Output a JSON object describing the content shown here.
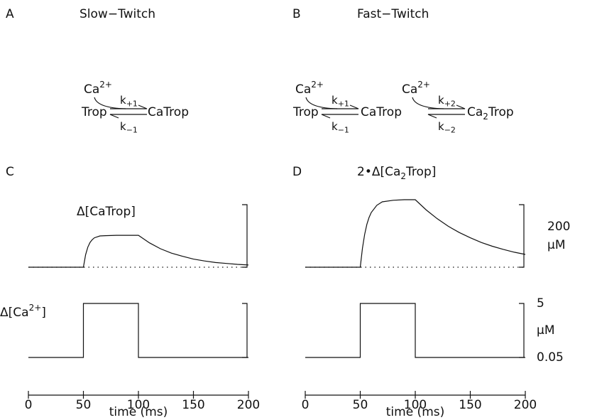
{
  "panels": [
    {
      "label": "A",
      "title": "Slow−Twitch"
    },
    {
      "label": "B",
      "title": "Fast−Twitch"
    },
    {
      "label": "C"
    },
    {
      "label": "D"
    }
  ],
  "schemes": [
    {
      "species": [
        [
          {
            "t": "Trop"
          }
        ],
        [
          {
            "t": "CaTrop"
          }
        ]
      ],
      "steps": [
        {
          "ligand": [
            {
              "t": "Ca"
            },
            {
              "t": "2+",
              "s": "sup"
            }
          ],
          "forward": [
            {
              "t": "k"
            },
            {
              "t": "+1",
              "s": "sub"
            }
          ],
          "reverse": [
            {
              "t": "k"
            },
            {
              "t": "−1",
              "s": "sub"
            }
          ]
        }
      ]
    },
    {
      "species": [
        [
          {
            "t": "Trop"
          }
        ],
        [
          {
            "t": "CaTrop"
          }
        ],
        [
          {
            "t": "Ca"
          },
          {
            "t": "2",
            "s": "sub"
          },
          {
            "t": "Trop"
          }
        ]
      ],
      "steps": [
        {
          "ligand": [
            {
              "t": "Ca"
            },
            {
              "t": "2+",
              "s": "sup"
            }
          ],
          "forward": [
            {
              "t": "k"
            },
            {
              "t": "+1",
              "s": "sub"
            }
          ],
          "reverse": [
            {
              "t": "k"
            },
            {
              "t": "−1",
              "s": "sub"
            }
          ]
        },
        {
          "ligand": [
            {
              "t": "Ca"
            },
            {
              "t": "2+",
              "s": "sup"
            }
          ],
          "forward": [
            {
              "t": "k"
            },
            {
              "t": "+2",
              "s": "sub"
            }
          ],
          "reverse": [
            {
              "t": "k"
            },
            {
              "t": "−2",
              "s": "sub"
            }
          ]
        }
      ]
    }
  ],
  "chart_data": [
    {
      "type": "line",
      "color": "#000000",
      "label": [
        {
          "t": "Δ[CaTrop]"
        }
      ],
      "x": [
        0,
        50,
        52,
        54,
        56,
        58,
        60,
        65,
        70,
        80,
        90,
        100,
        110,
        120,
        130,
        140,
        150,
        160,
        170,
        180,
        190,
        200
      ],
      "values": [
        0,
        0,
        40,
        64,
        79,
        88,
        94,
        100,
        101,
        102,
        102,
        102,
        78,
        59,
        45,
        35,
        26,
        20,
        15,
        12,
        9,
        7
      ],
      "xlim": [
        0,
        200
      ],
      "scale_bar": [
        0,
        200
      ],
      "baseline": 0
    },
    {
      "type": "line",
      "color": "#000000",
      "label": [
        {
          "t": "Δ[Ca"
        },
        {
          "t": "2+",
          "s": "sup"
        },
        {
          "t": "]"
        }
      ],
      "x": [
        0,
        50,
        50,
        100,
        100,
        200
      ],
      "values": [
        0.05,
        0.05,
        5,
        5,
        0.05,
        0.05
      ],
      "xlim": [
        0,
        200
      ],
      "xticks": [
        0,
        50,
        100,
        150,
        200
      ],
      "xlabel": "time (ms)",
      "scale_bar": [
        0.05,
        5
      ]
    },
    {
      "type": "line",
      "color": "#000000",
      "label": [
        {
          "t": "2•Δ[Ca"
        },
        {
          "t": "2",
          "s": "sub"
        },
        {
          "t": "Trop]"
        }
      ],
      "x": [
        0,
        50,
        52,
        54,
        56,
        58,
        60,
        65,
        70,
        80,
        90,
        100,
        110,
        120,
        130,
        140,
        150,
        160,
        170,
        180,
        190,
        200
      ],
      "values": [
        0,
        0,
        61,
        105,
        137,
        159,
        175,
        198,
        209,
        214,
        216,
        216,
        183,
        155,
        131,
        111,
        94,
        79,
        67,
        57,
        48,
        41
      ],
      "xlim": [
        0,
        200
      ],
      "scale_bar": [
        0,
        200
      ],
      "baseline": 0,
      "scale_label_position": "middle",
      "unit": "µM"
    },
    {
      "type": "line",
      "color": "#000000",
      "x": [
        0,
        50,
        50,
        100,
        100,
        200
      ],
      "values": [
        0.05,
        0.05,
        5,
        5,
        0.05,
        0.05
      ],
      "xlim": [
        0,
        200
      ],
      "xticks": [
        0,
        50,
        100,
        150,
        200
      ],
      "xlabel": "time (ms)",
      "scale_bar": [
        0.05,
        5
      ],
      "scale_label_position": "ends",
      "unit": "µM"
    }
  ]
}
